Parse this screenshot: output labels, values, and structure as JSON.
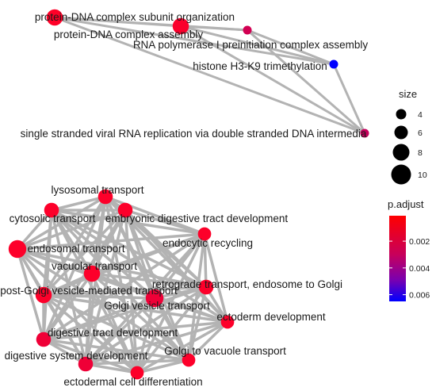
{
  "chart_data": {
    "type": "network",
    "title": "",
    "clusters": [
      {
        "name": "cluster-top",
        "nodes": [
          {
            "id": "n1",
            "label": "protein-DNA complex subunit organization",
            "size": 9,
            "p_adjust": 0.0001
          },
          {
            "id": "n2",
            "label": "protein-DNA complex assembly",
            "size": 9,
            "p_adjust": 0.0003
          },
          {
            "id": "n3",
            "label": "RNA polymerase I preinitiation complex assembly",
            "size": 4,
            "p_adjust": 0.002
          },
          {
            "id": "n4",
            "label": "histone H3-K9 trimethylation",
            "size": 4,
            "p_adjust": 0.0065
          },
          {
            "id": "n5",
            "label": "single stranded viral RNA replication via double stranded DNA intermedia",
            "size": 4,
            "p_adjust": 0.0025
          }
        ],
        "edges": [
          [
            "n1",
            "n2"
          ],
          [
            "n1",
            "n3"
          ],
          [
            "n1",
            "n4"
          ],
          [
            "n1",
            "n5"
          ],
          [
            "n2",
            "n3"
          ],
          [
            "n2",
            "n4"
          ],
          [
            "n2",
            "n5"
          ],
          [
            "n3",
            "n4"
          ],
          [
            "n3",
            "n5"
          ],
          [
            "n4",
            "n5"
          ]
        ]
      },
      {
        "name": "cluster-bottom",
        "nodes": [
          {
            "id": "m1",
            "label": "lysosomal transport",
            "size": 8,
            "p_adjust": 0.0002
          },
          {
            "id": "m2",
            "label": "cytosolic transport",
            "size": 8,
            "p_adjust": 0.0002
          },
          {
            "id": "m3",
            "label": "embryonic digestive tract development",
            "size": 8,
            "p_adjust": 0.0002
          },
          {
            "id": "m4",
            "label": "endocytic recycling",
            "size": 7,
            "p_adjust": 0.0002
          },
          {
            "id": "m5",
            "label": "endosomal transport",
            "size": 10,
            "p_adjust": 0.0002
          },
          {
            "id": "m6",
            "label": "vacuolar transport",
            "size": 9,
            "p_adjust": 0.0002
          },
          {
            "id": "m7",
            "label": "post-Golgi vesicle-mediated transport",
            "size": 9,
            "p_adjust": 0.0002
          },
          {
            "id": "m8",
            "label": "retrograde transport, endosome to Golgi",
            "size": 8,
            "p_adjust": 0.0002
          },
          {
            "id": "m9",
            "label": "Golgi vesicle transport",
            "size": 10,
            "p_adjust": 0.0008
          },
          {
            "id": "m10",
            "label": "ectoderm development",
            "size": 7,
            "p_adjust": 0.0002
          },
          {
            "id": "m11",
            "label": "digestive tract development",
            "size": 8,
            "p_adjust": 0.0008
          },
          {
            "id": "m12",
            "label": "Golgi to vacuole transport",
            "size": 7,
            "p_adjust": 0.0002
          },
          {
            "id": "m13",
            "label": "digestive system development",
            "size": 8,
            "p_adjust": 0.0008
          },
          {
            "id": "m14",
            "label": "ectodermal cell differentiation",
            "size": 7,
            "p_adjust": 0.0002
          }
        ],
        "edges": "all-pairs"
      }
    ],
    "legend": {
      "size": {
        "title": "size",
        "values": [
          4,
          6,
          8,
          10
        ],
        "labels": [
          "4",
          "6",
          "8",
          "10"
        ]
      },
      "p_adjust": {
        "title": "p.adjust",
        "min": 0.0001,
        "max": 0.0065,
        "ticks": [
          0.002,
          0.004,
          0.006
        ],
        "tick_labels": [
          "0.002",
          "0.004",
          "0.006"
        ],
        "color_low": "#FF0000",
        "color_mid": "#B4006E",
        "color_high": "#0000FF"
      }
    },
    "colors": {
      "edge": "#b3b3b3",
      "text": "#1a1a1a",
      "background": "#ffffff"
    }
  }
}
